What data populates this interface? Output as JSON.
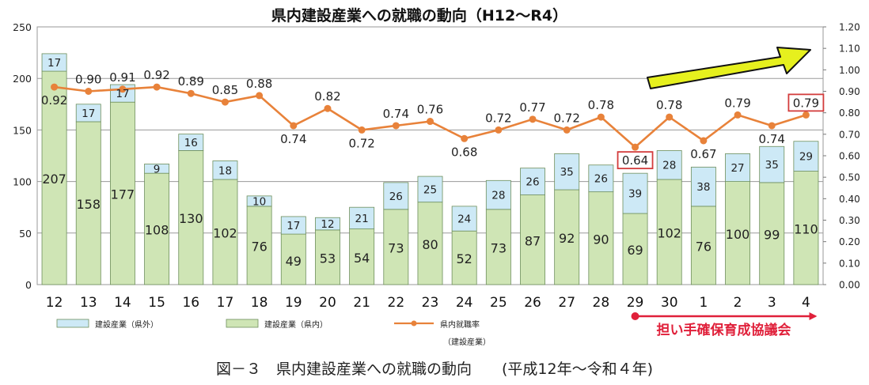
{
  "chart_data": {
    "type": "bar+line",
    "title": "県内建設産業への就職の動向（H12〜R4）",
    "categories": [
      "12",
      "13",
      "14",
      "15",
      "16",
      "17",
      "18",
      "19",
      "20",
      "21",
      "22",
      "23",
      "24",
      "25",
      "26",
      "27",
      "28",
      "29",
      "30",
      "1",
      "2",
      "3",
      "4"
    ],
    "series": [
      {
        "name": "建設産業（県内）",
        "kind": "stacked-bar-bottom",
        "values": [
          207,
          158,
          177,
          108,
          130,
          102,
          76,
          49,
          53,
          54,
          73,
          80,
          52,
          73,
          87,
          92,
          90,
          69,
          102,
          76,
          100,
          99,
          110
        ],
        "labels": [
          "207",
          "158",
          "177",
          "108",
          "130",
          "102",
          "76",
          "49",
          "53",
          "54",
          "73",
          "80",
          "52",
          "73",
          "87",
          "92",
          "90",
          "69",
          "102",
          "76",
          "100",
          "99",
          "110"
        ]
      },
      {
        "name": "建設産業（県外）",
        "kind": "stacked-bar-top",
        "values": [
          17,
          17,
          17,
          9,
          16,
          18,
          10,
          17,
          12,
          21,
          26,
          25,
          24,
          28,
          26,
          35,
          26,
          39,
          28,
          38,
          27,
          35,
          29
        ],
        "labels": [
          "17",
          "17",
          "17",
          "9",
          "16",
          "18",
          "10",
          "17",
          "12",
          "21",
          "26",
          "25",
          "24",
          "28",
          "26",
          "35",
          "26",
          "39",
          "28",
          "38",
          "27",
          "35",
          "29"
        ]
      },
      {
        "name": "県内就職率",
        "kind": "line-right-axis",
        "values": [
          0.92,
          0.9,
          0.91,
          0.92,
          0.89,
          0.85,
          0.88,
          0.74,
          0.82,
          0.72,
          0.74,
          0.76,
          0.68,
          0.72,
          0.77,
          0.72,
          0.78,
          0.64,
          0.78,
          0.67,
          0.79,
          0.74,
          0.79
        ],
        "labels": [
          "0.92",
          "0.90",
          "0.91",
          "0.92",
          "0.89",
          "0.85",
          "0.88",
          "0.74",
          "0.82",
          "0.72",
          "0.74",
          "0.76",
          "0.68",
          "0.72",
          "0.77",
          "0.72",
          "0.78",
          "0.64",
          "0.78",
          "0.67",
          "0.79",
          "0.74",
          "0.79"
        ]
      }
    ],
    "highlighted_points": [
      17,
      22
    ],
    "left_axis": {
      "range": [
        0,
        250
      ],
      "ticks": [
        "0",
        "50",
        "100",
        "150",
        "200",
        "250"
      ]
    },
    "right_axis": {
      "range": [
        0,
        1.2
      ],
      "ticks": [
        "0.00",
        "0.10",
        "0.20",
        "0.30",
        "0.40",
        "0.50",
        "0.60",
        "0.70",
        "0.80",
        "0.90",
        "1.00",
        "1.10",
        "1.20"
      ]
    },
    "legend": {
      "items": [
        "建設産業（県外）",
        "建設産業（県内）",
        "県内就職率"
      ],
      "sublabel": "（建設産業）",
      "placement": "bottom"
    },
    "annotation": {
      "text": "担い手確保育成協議会",
      "from_category": "29",
      "to_category": "4",
      "color": "#e0203a"
    },
    "trend_arrow": {
      "direction": "up-right",
      "color": "#e6f01e"
    },
    "grid": true,
    "colors": {
      "bar_inner": "#cfe5b5",
      "bar_outer": "#cde9f6",
      "bar_edge": "#6e8f5c",
      "line": "#e8823a",
      "highlight_box": "#d33c3c"
    }
  },
  "caption": "図－３　県内建設産業への就職の動向　　(平成12年〜令和４年)"
}
